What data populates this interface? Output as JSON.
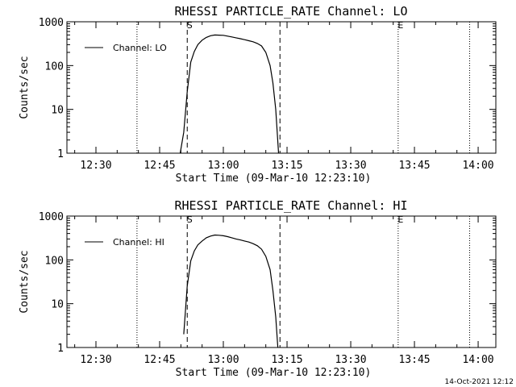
{
  "footer": {
    "timestamp": "14-Oct-2021 12:12"
  },
  "markers": {
    "start": "S",
    "end": "E"
  },
  "chart_data": [
    {
      "type": "line",
      "title": "RHESSI PARTICLE_RATE Channel: LO",
      "xlabel": "Start Time (09-Mar-10 12:23:10)",
      "ylabel": "Counts/sec",
      "y_scale": "log",
      "ylim": [
        1,
        1000
      ],
      "y_ticks": [
        1,
        10,
        100,
        1000
      ],
      "y_tick_labels": [
        "1",
        "10",
        "100",
        "1000"
      ],
      "x_time_range": [
        "12:23:10",
        "14:04:10"
      ],
      "x_ticks": [
        "12:30",
        "12:45",
        "13:00",
        "13:15",
        "13:30",
        "13:45",
        "14:00"
      ],
      "legend": {
        "label": "Channel: LO",
        "position": "top-left"
      },
      "dotted_lines": [
        "12:39:40",
        "13:41:10",
        "13:58:00"
      ],
      "dashed_lines": [
        "12:51:30",
        "13:13:20"
      ],
      "markers": [
        {
          "label": "S",
          "time": "12:51:30"
        },
        {
          "label": "E",
          "time": "13:41:10"
        }
      ],
      "series": [
        {
          "name": "Channel: LO",
          "x": [
            "12:49:50",
            "12:50:40",
            "12:51:30",
            "12:52:20",
            "12:53:10",
            "12:54:00",
            "12:55:00",
            "12:56:00",
            "12:57:00",
            "12:58:00",
            "12:59:00",
            "13:00:00",
            "13:01:00",
            "13:02:00",
            "13:03:00",
            "13:04:00",
            "13:05:00",
            "13:06:00",
            "13:07:00",
            "13:08:00",
            "13:09:00",
            "13:10:00",
            "13:11:00",
            "13:11:40",
            "13:12:20",
            "13:13:00"
          ],
          "y": [
            1,
            3,
            25,
            120,
            210,
            300,
            380,
            440,
            480,
            500,
            495,
            490,
            470,
            450,
            430,
            410,
            390,
            370,
            350,
            320,
            280,
            200,
            100,
            40,
            10,
            1
          ]
        }
      ]
    },
    {
      "type": "line",
      "title": "RHESSI PARTICLE_RATE Channel: HI",
      "xlabel": "Start Time (09-Mar-10 12:23:10)",
      "ylabel": "Counts/sec",
      "y_scale": "log",
      "ylim": [
        1,
        1000
      ],
      "y_ticks": [
        1,
        10,
        100,
        1000
      ],
      "y_tick_labels": [
        "1",
        "10",
        "100",
        "1000"
      ],
      "x_time_range": [
        "12:23:10",
        "14:04:10"
      ],
      "x_ticks": [
        "12:30",
        "12:45",
        "13:00",
        "13:15",
        "13:30",
        "13:45",
        "14:00"
      ],
      "legend": {
        "label": "Channel: HI",
        "position": "top-left"
      },
      "dotted_lines": [
        "12:39:40",
        "13:41:10",
        "13:58:00"
      ],
      "dashed_lines": [
        "12:51:30",
        "13:13:20"
      ],
      "markers": [
        {
          "label": "S",
          "time": "12:51:30"
        },
        {
          "label": "E",
          "time": "13:41:10"
        }
      ],
      "series": [
        {
          "name": "Channel: HI",
          "x": [
            "12:50:40",
            "12:51:30",
            "12:52:20",
            "12:53:10",
            "12:54:00",
            "12:55:00",
            "12:56:00",
            "12:57:00",
            "12:58:00",
            "12:59:00",
            "13:00:00",
            "13:01:00",
            "13:02:00",
            "13:03:00",
            "13:04:00",
            "13:05:00",
            "13:06:00",
            "13:07:00",
            "13:08:00",
            "13:09:00",
            "13:10:00",
            "13:11:00",
            "13:11:40",
            "13:12:20",
            "13:12:50"
          ],
          "y": [
            2,
            25,
            95,
            160,
            220,
            270,
            320,
            350,
            370,
            365,
            355,
            340,
            320,
            300,
            285,
            270,
            255,
            235,
            210,
            175,
            120,
            60,
            20,
            5,
            1
          ]
        }
      ]
    }
  ]
}
